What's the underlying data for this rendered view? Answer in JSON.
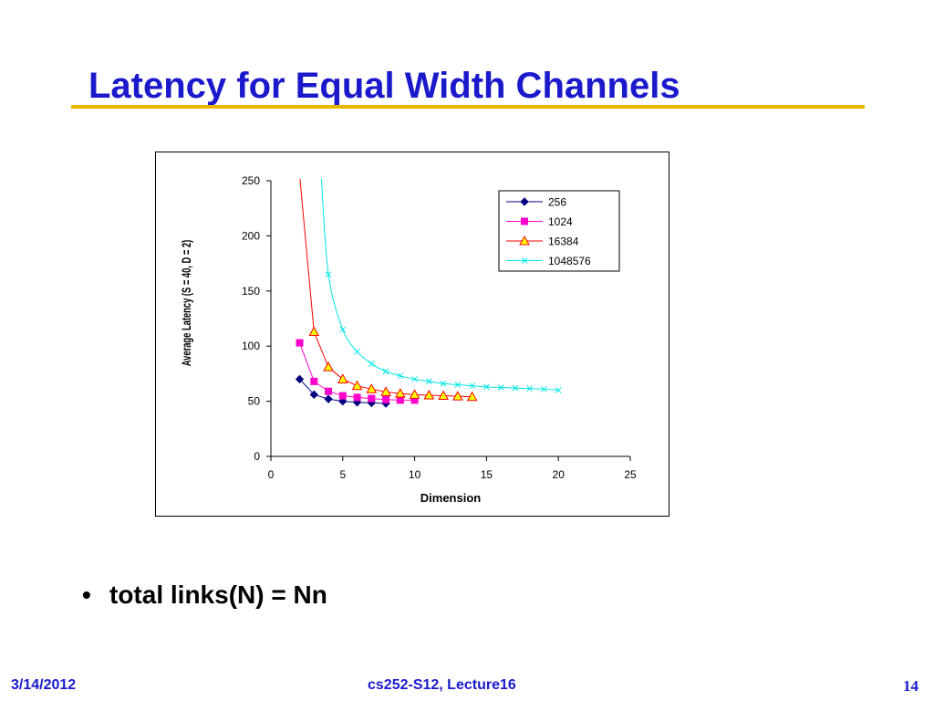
{
  "slide": {
    "title": "Latency for Equal Width Channels",
    "bullet_symbol": "•",
    "bullet_text": "total links(N) = Nn",
    "footer_date": "3/14/2012",
    "footer_course": "cs252-S12, Lecture16",
    "footer_page": "14"
  },
  "colors": {
    "title": "#1a1acc",
    "rule": "#e8b800"
  },
  "chart_data": {
    "type": "line",
    "title": "",
    "xlabel": "Dimension",
    "ylabel": "Average Latency (S = 40, D = 2)",
    "xlim": [
      0,
      25
    ],
    "ylim": [
      0,
      250
    ],
    "x_ticks": [
      0,
      5,
      10,
      15,
      20,
      25
    ],
    "y_ticks": [
      0,
      50,
      100,
      150,
      200,
      250
    ],
    "grid": false,
    "legend_position": "top-right",
    "series": [
      {
        "name": "256",
        "color": "#000080",
        "marker": "diamond",
        "smooth": false,
        "x": [
          2,
          3,
          4,
          5,
          6,
          7,
          8
        ],
        "y": [
          70,
          56,
          52,
          50,
          49,
          48.5,
          48
        ]
      },
      {
        "name": "1024",
        "color": "#ff00cc",
        "marker": "square",
        "smooth": false,
        "x": [
          2,
          3,
          4,
          5,
          6,
          7,
          8,
          9,
          10
        ],
        "y": [
          103,
          68,
          59,
          55,
          53.5,
          52.5,
          51.5,
          51,
          51
        ]
      },
      {
        "name": "16384",
        "color": "#ff0000",
        "marker": "triangle",
        "marker_fill": "#ffff00",
        "smooth": false,
        "x": [
          2,
          3,
          4,
          5,
          6,
          7,
          8,
          9,
          10,
          11,
          12,
          13,
          14
        ],
        "y": [
          255,
          113,
          81,
          70,
          64,
          61,
          58.5,
          57,
          56,
          55.5,
          55,
          54.5,
          54
        ]
      },
      {
        "name": "1048576",
        "color": "#00e5e5",
        "marker": "x",
        "smooth": true,
        "x": [
          3.5,
          4,
          5,
          6,
          7,
          8,
          9,
          10,
          11,
          12,
          13,
          14,
          15,
          16,
          17,
          18,
          19,
          20
        ],
        "y": [
          255,
          165,
          115,
          95,
          84,
          77,
          73,
          70,
          68,
          66,
          65,
          64,
          63,
          62.5,
          62,
          61.5,
          61,
          60
        ]
      }
    ]
  }
}
